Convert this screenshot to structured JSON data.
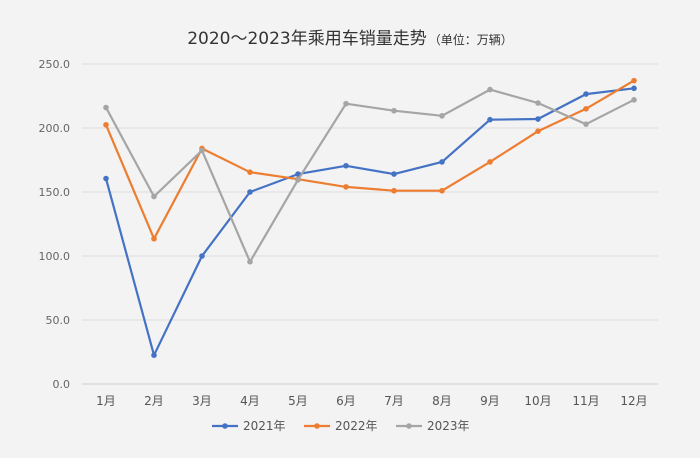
{
  "chart_data": {
    "type": "line",
    "title": "2020～2023年乘用车销量走势",
    "subtitle": "（单位：万辆）",
    "categories": [
      "1月",
      "2月",
      "3月",
      "4月",
      "5月",
      "6月",
      "7月",
      "8月",
      "9月",
      "10月",
      "11月",
      "12月"
    ],
    "ylim": [
      0,
      250
    ],
    "yticks": [
      "0.0",
      "50.0",
      "100.0",
      "150.0",
      "200.0",
      "250.0"
    ],
    "grid": true,
    "legend_position": "bottom",
    "series": [
      {
        "name": "2021年",
        "color": "#4472c4",
        "values": [
          160.5,
          22.5,
          100.0,
          150.0,
          164.0,
          170.5,
          164.0,
          173.5,
          206.5,
          207.0,
          226.5,
          231.0
        ]
      },
      {
        "name": "2022年",
        "color": "#ed7d31",
        "values": [
          202.5,
          113.5,
          184.0,
          165.5,
          160.0,
          154.0,
          151.0,
          151.0,
          173.5,
          197.5,
          215.0,
          237.0
        ]
      },
      {
        "name": "2023年",
        "color": "#a5a5a5",
        "values": [
          216.0,
          146.5,
          182.5,
          95.5,
          159.5,
          219.0,
          213.5,
          209.5,
          230.0,
          219.5,
          203.0,
          222.0
        ]
      }
    ]
  }
}
